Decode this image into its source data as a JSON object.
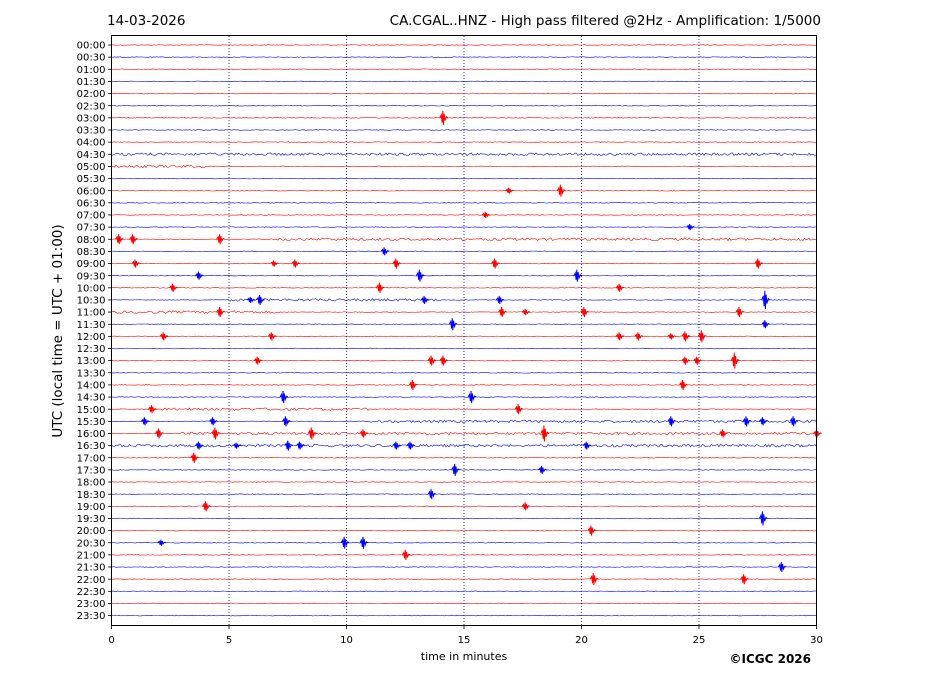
{
  "header": {
    "date": "14-03-2026",
    "title": "CA.CGAL..HNZ - High pass filtered @2Hz - Amplification: 1/5000"
  },
  "footer": {
    "copyright": "©ICGC 2026"
  },
  "colors": {
    "odd_trace": "#ff0000",
    "even_trace": "#0000ff",
    "axes": "#000000",
    "grid": "#0000aa"
  },
  "chart_data": {
    "type": "line",
    "title": "CA.CGAL..HNZ - High pass filtered @2Hz - Amplification: 1/5000",
    "xlabel": "time in minutes",
    "ylabel": "UTC (local time = UTC + 01:00)",
    "xlim": [
      0,
      30
    ],
    "x_ticks": [
      0,
      5,
      10,
      15,
      20,
      25,
      30
    ],
    "vertical_grid": [
      5,
      10,
      15,
      20,
      25
    ],
    "grid": "vertical dotted",
    "rows": [
      "00:00",
      "00:30",
      "01:00",
      "01:30",
      "02:00",
      "02:30",
      "03:00",
      "03:30",
      "04:00",
      "04:30",
      "05:00",
      "05:30",
      "06:00",
      "06:30",
      "07:00",
      "07:30",
      "08:00",
      "08:30",
      "09:00",
      "09:30",
      "10:00",
      "10:30",
      "11:00",
      "11:30",
      "12:00",
      "12:30",
      "13:00",
      "13:30",
      "14:00",
      "14:30",
      "15:00",
      "15:30",
      "16:00",
      "16:30",
      "17:00",
      "17:30",
      "18:00",
      "18:30",
      "19:00",
      "19:30",
      "20:00",
      "20:30",
      "21:00",
      "21:30",
      "22:00",
      "22:30",
      "23:00",
      "23:30"
    ],
    "events": [
      {
        "row": "03:00",
        "minute": 14.1,
        "amplitude": 7
      },
      {
        "row": "06:00",
        "minute": 16.9,
        "amplitude": 3
      },
      {
        "row": "06:00",
        "minute": 19.1,
        "amplitude": 6
      },
      {
        "row": "07:00",
        "minute": 15.9,
        "amplitude": 3
      },
      {
        "row": "07:30",
        "minute": 24.6,
        "amplitude": 3
      },
      {
        "row": "08:00",
        "minute": 0.3,
        "amplitude": 5
      },
      {
        "row": "08:00",
        "minute": 0.9,
        "amplitude": 5
      },
      {
        "row": "08:00",
        "minute": 4.6,
        "amplitude": 5
      },
      {
        "row": "08:30",
        "minute": 11.6,
        "amplitude": 4
      },
      {
        "row": "09:00",
        "minute": 1.0,
        "amplitude": 4
      },
      {
        "row": "09:00",
        "minute": 6.9,
        "amplitude": 3
      },
      {
        "row": "09:00",
        "minute": 7.8,
        "amplitude": 4
      },
      {
        "row": "09:00",
        "minute": 12.1,
        "amplitude": 5
      },
      {
        "row": "09:00",
        "minute": 16.3,
        "amplitude": 5
      },
      {
        "row": "09:00",
        "minute": 27.5,
        "amplitude": 5
      },
      {
        "row": "09:30",
        "minute": 3.7,
        "amplitude": 4
      },
      {
        "row": "09:30",
        "minute": 13.1,
        "amplitude": 6
      },
      {
        "row": "09:30",
        "minute": 19.8,
        "amplitude": 6
      },
      {
        "row": "10:00",
        "minute": 2.6,
        "amplitude": 4
      },
      {
        "row": "10:00",
        "minute": 11.4,
        "amplitude": 5
      },
      {
        "row": "10:00",
        "minute": 21.6,
        "amplitude": 4
      },
      {
        "row": "10:30",
        "minute": 5.9,
        "amplitude": 3
      },
      {
        "row": "10:30",
        "minute": 6.3,
        "amplitude": 5
      },
      {
        "row": "10:30",
        "minute": 13.3,
        "amplitude": 4
      },
      {
        "row": "10:30",
        "minute": 16.5,
        "amplitude": 4
      },
      {
        "row": "10:30",
        "minute": 27.8,
        "amplitude": 9
      },
      {
        "row": "11:00",
        "minute": 4.6,
        "amplitude": 5
      },
      {
        "row": "11:00",
        "minute": 16.6,
        "amplitude": 5
      },
      {
        "row": "11:00",
        "minute": 17.6,
        "amplitude": 3
      },
      {
        "row": "11:00",
        "minute": 20.1,
        "amplitude": 5
      },
      {
        "row": "11:00",
        "minute": 26.7,
        "amplitude": 5
      },
      {
        "row": "11:30",
        "minute": 14.5,
        "amplitude": 6
      },
      {
        "row": "11:30",
        "minute": 27.8,
        "amplitude": 4
      },
      {
        "row": "12:00",
        "minute": 2.2,
        "amplitude": 4
      },
      {
        "row": "12:00",
        "minute": 6.8,
        "amplitude": 4
      },
      {
        "row": "12:00",
        "minute": 21.6,
        "amplitude": 4
      },
      {
        "row": "12:00",
        "minute": 22.4,
        "amplitude": 4
      },
      {
        "row": "12:00",
        "minute": 23.8,
        "amplitude": 3
      },
      {
        "row": "12:00",
        "minute": 24.4,
        "amplitude": 5
      },
      {
        "row": "12:00",
        "minute": 25.1,
        "amplitude": 6
      },
      {
        "row": "13:00",
        "minute": 6.2,
        "amplitude": 4
      },
      {
        "row": "13:00",
        "minute": 13.6,
        "amplitude": 5
      },
      {
        "row": "13:00",
        "minute": 14.1,
        "amplitude": 5
      },
      {
        "row": "13:00",
        "minute": 24.4,
        "amplitude": 4
      },
      {
        "row": "13:00",
        "minute": 24.9,
        "amplitude": 4
      },
      {
        "row": "13:00",
        "minute": 26.5,
        "amplitude": 8
      },
      {
        "row": "14:00",
        "minute": 12.8,
        "amplitude": 5
      },
      {
        "row": "14:00",
        "minute": 24.3,
        "amplitude": 5
      },
      {
        "row": "14:30",
        "minute": 7.3,
        "amplitude": 6
      },
      {
        "row": "14:30",
        "minute": 15.3,
        "amplitude": 6
      },
      {
        "row": "15:00",
        "minute": 1.7,
        "amplitude": 4
      },
      {
        "row": "15:00",
        "minute": 17.3,
        "amplitude": 5
      },
      {
        "row": "15:30",
        "minute": 1.4,
        "amplitude": 4
      },
      {
        "row": "15:30",
        "minute": 4.3,
        "amplitude": 4
      },
      {
        "row": "15:30",
        "minute": 7.4,
        "amplitude": 5
      },
      {
        "row": "15:30",
        "minute": 23.8,
        "amplitude": 5
      },
      {
        "row": "15:30",
        "minute": 27.0,
        "amplitude": 5
      },
      {
        "row": "15:30",
        "minute": 27.7,
        "amplitude": 4
      },
      {
        "row": "15:30",
        "minute": 29.0,
        "amplitude": 5
      },
      {
        "row": "16:00",
        "minute": 2.0,
        "amplitude": 5
      },
      {
        "row": "16:00",
        "minute": 4.4,
        "amplitude": 6
      },
      {
        "row": "16:00",
        "minute": 8.5,
        "amplitude": 6
      },
      {
        "row": "16:00",
        "minute": 10.7,
        "amplitude": 4
      },
      {
        "row": "16:00",
        "minute": 18.4,
        "amplitude": 8
      },
      {
        "row": "16:00",
        "minute": 26.0,
        "amplitude": 4
      },
      {
        "row": "16:00",
        "minute": 30.0,
        "amplitude": 4
      },
      {
        "row": "16:30",
        "minute": 3.7,
        "amplitude": 4
      },
      {
        "row": "16:30",
        "minute": 5.3,
        "amplitude": 3
      },
      {
        "row": "16:30",
        "minute": 7.5,
        "amplitude": 5
      },
      {
        "row": "16:30",
        "minute": 8.0,
        "amplitude": 4
      },
      {
        "row": "16:30",
        "minute": 12.1,
        "amplitude": 4
      },
      {
        "row": "16:30",
        "minute": 12.7,
        "amplitude": 4
      },
      {
        "row": "16:30",
        "minute": 20.2,
        "amplitude": 4
      },
      {
        "row": "17:00",
        "minute": 3.5,
        "amplitude": 5
      },
      {
        "row": "17:30",
        "minute": 14.6,
        "amplitude": 6
      },
      {
        "row": "17:30",
        "minute": 18.3,
        "amplitude": 4
      },
      {
        "row": "18:30",
        "minute": 13.6,
        "amplitude": 5
      },
      {
        "row": "19:00",
        "minute": 4.0,
        "amplitude": 5
      },
      {
        "row": "19:00",
        "minute": 17.6,
        "amplitude": 4
      },
      {
        "row": "19:30",
        "minute": 27.7,
        "amplitude": 7
      },
      {
        "row": "20:00",
        "minute": 20.4,
        "amplitude": 5
      },
      {
        "row": "20:30",
        "minute": 2.1,
        "amplitude": 3
      },
      {
        "row": "20:30",
        "minute": 9.9,
        "amplitude": 6
      },
      {
        "row": "20:30",
        "minute": 10.7,
        "amplitude": 6
      },
      {
        "row": "21:00",
        "minute": 12.5,
        "amplitude": 5
      },
      {
        "row": "21:30",
        "minute": 28.5,
        "amplitude": 5
      },
      {
        "row": "22:00",
        "minute": 20.5,
        "amplitude": 6
      },
      {
        "row": "22:00",
        "minute": 26.9,
        "amplitude": 5
      }
    ],
    "noisy_segments": [
      {
        "row": "04:30",
        "from": 0,
        "to": 30
      },
      {
        "row": "05:00",
        "from": 0,
        "to": 4
      },
      {
        "row": "08:00",
        "from": 7,
        "to": 30
      },
      {
        "row": "10:30",
        "from": 5,
        "to": 14
      },
      {
        "row": "11:00",
        "from": 0,
        "to": 7
      },
      {
        "row": "15:00",
        "from": 2,
        "to": 11
      },
      {
        "row": "15:30",
        "from": 11,
        "to": 30
      },
      {
        "row": "16:00",
        "from": 3,
        "to": 30
      },
      {
        "row": "16:30",
        "from": 0,
        "to": 30
      }
    ]
  }
}
